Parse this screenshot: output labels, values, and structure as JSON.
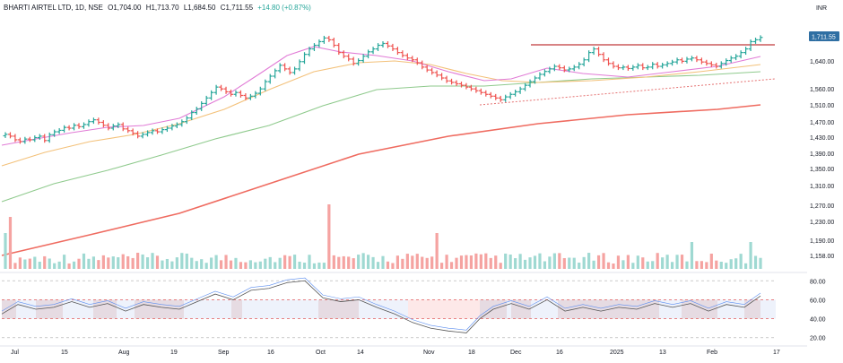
{
  "header": {
    "symbol": "BHARTI AIRTEL LTD, 1D, NSE",
    "open": "O1,704.00",
    "high": "H1,713.70",
    "low": "L1,684.50",
    "close": "C1,711.55",
    "change": "+14.80 (+0.87%)",
    "currency": "INR"
  },
  "colors": {
    "up": "#26a69a",
    "down": "#ef5350",
    "ma_pink": "#e17bd6",
    "ma_orange": "#f3c17a",
    "ma_green": "#8fca8d",
    "ma_red": "#ef6b60",
    "resistance": "#c0393b",
    "support_dotted": "#e57373",
    "rsi_line": "#555555",
    "price_tag": "#2f6fa3"
  },
  "chart_data": [
    {
      "type": "ohlc",
      "price_axis_ticks": [
        "1,640.00",
        "1,560.00",
        "1,510.00",
        "1,470.00",
        "1,430.00",
        "1,390.00",
        "1,350.00",
        "1,310.00",
        "1,270.00",
        "1,230.00",
        "1,190.00",
        "1,158.00"
      ],
      "last_price": "1,711.55",
      "x_tick_labels": [
        "Jul",
        "15",
        "Aug",
        "19",
        "Sep",
        "16",
        "Oct",
        "14",
        "Nov",
        "18",
        "Dec",
        "16",
        "2025",
        "13",
        "Feb",
        "17"
      ],
      "closes": [
        1445,
        1440,
        1430,
        1425,
        1432,
        1430,
        1436,
        1440,
        1428,
        1444,
        1452,
        1456,
        1464,
        1462,
        1470,
        1466,
        1472,
        1480,
        1485,
        1478,
        1470,
        1462,
        1468,
        1472,
        1460,
        1455,
        1448,
        1440,
        1445,
        1450,
        1455,
        1452,
        1458,
        1462,
        1468,
        1472,
        1480,
        1490,
        1505,
        1515,
        1530,
        1545,
        1560,
        1575,
        1570,
        1562,
        1555,
        1560,
        1552,
        1545,
        1550,
        1558,
        1570,
        1590,
        1605,
        1620,
        1635,
        1625,
        1615,
        1625,
        1645,
        1665,
        1680,
        1690,
        1700,
        1710,
        1705,
        1690,
        1670,
        1660,
        1652,
        1640,
        1648,
        1660,
        1672,
        1680,
        1690,
        1695,
        1688,
        1680,
        1670,
        1662,
        1655,
        1650,
        1642,
        1630,
        1622,
        1615,
        1608,
        1600,
        1592,
        1588,
        1584,
        1580,
        1575,
        1570,
        1565,
        1560,
        1555,
        1550,
        1545,
        1540,
        1548,
        1555,
        1562,
        1570,
        1580,
        1590,
        1600,
        1610,
        1618,
        1625,
        1632,
        1628,
        1622,
        1625,
        1630,
        1638,
        1650,
        1670,
        1680,
        1665,
        1650,
        1640,
        1632,
        1628,
        1630,
        1626,
        1630,
        1635,
        1628,
        1630,
        1638,
        1632,
        1636,
        1640,
        1644,
        1650,
        1646,
        1652,
        1655,
        1650,
        1644,
        1640,
        1636,
        1632,
        1640,
        1648,
        1655,
        1660,
        1670,
        1680,
        1700,
        1705,
        1711.55
      ],
      "volume_tick_labels": [
        "1,190.00",
        "1,158.00"
      ]
    },
    {
      "type": "line",
      "name": "RSI",
      "y_ticks": [
        "80.00",
        "60.00",
        "40.00",
        "20.00"
      ],
      "levels": [
        80,
        60,
        40,
        20
      ],
      "ylim": [
        15,
        85
      ]
    }
  ]
}
